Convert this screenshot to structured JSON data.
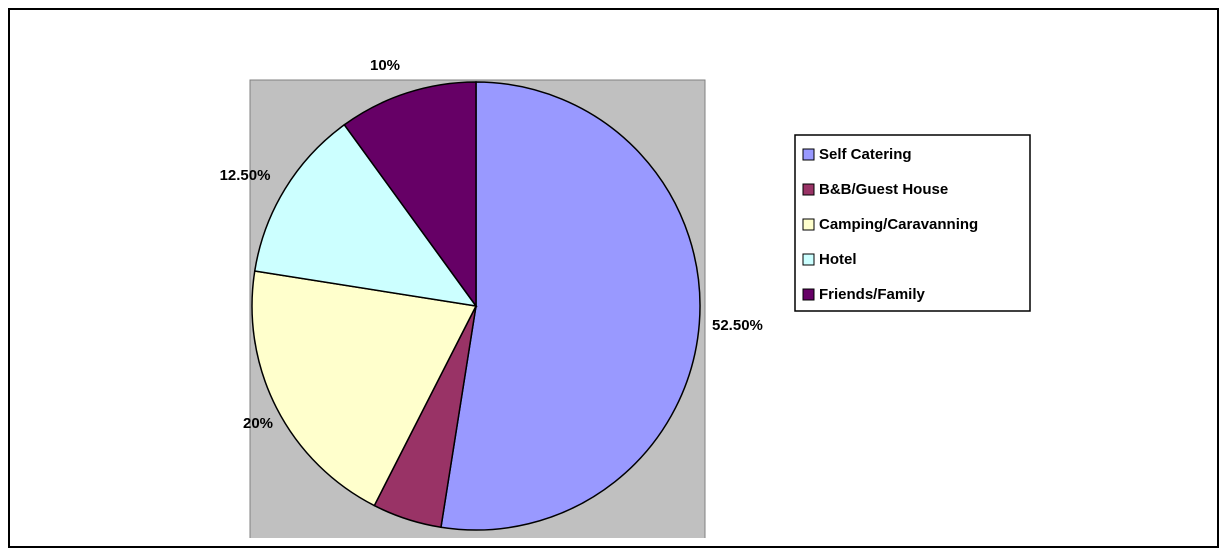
{
  "chart_data": {
    "type": "pie",
    "title": "",
    "slices": [
      {
        "label": "Self Catering",
        "value": 52.5,
        "display": "52.50%",
        "color": "#9999ff"
      },
      {
        "label": "B&B/Guest House",
        "value": 5,
        "display": "",
        "color": "#993366"
      },
      {
        "label": "Camping/Caravanning",
        "value": 20,
        "display": "20%",
        "color": "#ffffcc"
      },
      {
        "label": "Hotel",
        "value": 12.5,
        "display": "12.50%",
        "color": "#ccffff"
      },
      {
        "label": "Friends/Family",
        "value": 10,
        "display": "10%",
        "color": "#660066"
      }
    ],
    "start": "12 o'clock",
    "direction": "clockwise",
    "plot_area_color": "#c0c0c0",
    "legend": {
      "placement": "right"
    }
  }
}
